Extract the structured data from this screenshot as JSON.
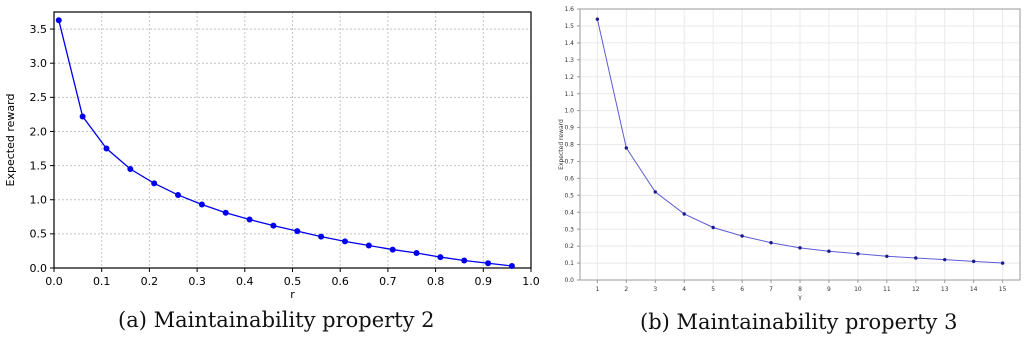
{
  "figures": [
    {
      "caption": "(a) Maintainability property 2"
    },
    {
      "caption": "(b) Maintainability property 3"
    }
  ],
  "chart_data": [
    {
      "type": "line",
      "title": "",
      "xlabel": "r",
      "ylabel": "Expected reward",
      "xlim": [
        0.0,
        1.0
      ],
      "ylim": [
        0.0,
        3.75
      ],
      "xticks": [
        "0.0",
        "0.1",
        "0.2",
        "0.3",
        "0.4",
        "0.5",
        "0.6",
        "0.7",
        "0.8",
        "0.9",
        "1.0"
      ],
      "yticks": [
        "0.0",
        "0.5",
        "1.0",
        "1.5",
        "2.0",
        "2.5",
        "3.0",
        "3.5"
      ],
      "grid": true,
      "legend": "none",
      "color": "#0000ee",
      "series": [
        {
          "x": [
            0.01,
            0.06,
            0.11,
            0.16,
            0.21,
            0.26,
            0.31,
            0.36,
            0.41,
            0.46,
            0.51,
            0.56,
            0.61,
            0.66,
            0.71,
            0.76,
            0.81,
            0.86,
            0.91,
            0.96
          ],
          "values": [
            3.63,
            2.22,
            1.75,
            1.45,
            1.24,
            1.07,
            0.93,
            0.81,
            0.71,
            0.62,
            0.54,
            0.46,
            0.39,
            0.33,
            0.27,
            0.22,
            0.16,
            0.11,
            0.07,
            0.03
          ]
        }
      ]
    },
    {
      "type": "line",
      "title": "",
      "xlabel": "γ",
      "ylabel": "Expected reward",
      "xlim": [
        0.4,
        15.6
      ],
      "ylim": [
        0.0,
        1.6
      ],
      "xticks": [
        "1",
        "2",
        "3",
        "4",
        "5",
        "6",
        "7",
        "8",
        "9",
        "10",
        "11",
        "12",
        "13",
        "14",
        "15"
      ],
      "yticks": [
        "0.0",
        "0.1",
        "0.2",
        "0.3",
        "0.4",
        "0.5",
        "0.6",
        "0.7",
        "0.8",
        "0.9",
        "1.0",
        "1.1",
        "1.2",
        "1.3",
        "1.4",
        "1.5",
        "1.6"
      ],
      "grid": true,
      "legend": "none",
      "color": "#5b5bd6",
      "series": [
        {
          "x": [
            1,
            2,
            3,
            4,
            5,
            6,
            7,
            8,
            9,
            10,
            11,
            12,
            13,
            14,
            15
          ],
          "values": [
            1.54,
            0.78,
            0.52,
            0.39,
            0.31,
            0.26,
            0.22,
            0.19,
            0.17,
            0.155,
            0.14,
            0.13,
            0.12,
            0.11,
            0.1
          ]
        }
      ]
    }
  ]
}
